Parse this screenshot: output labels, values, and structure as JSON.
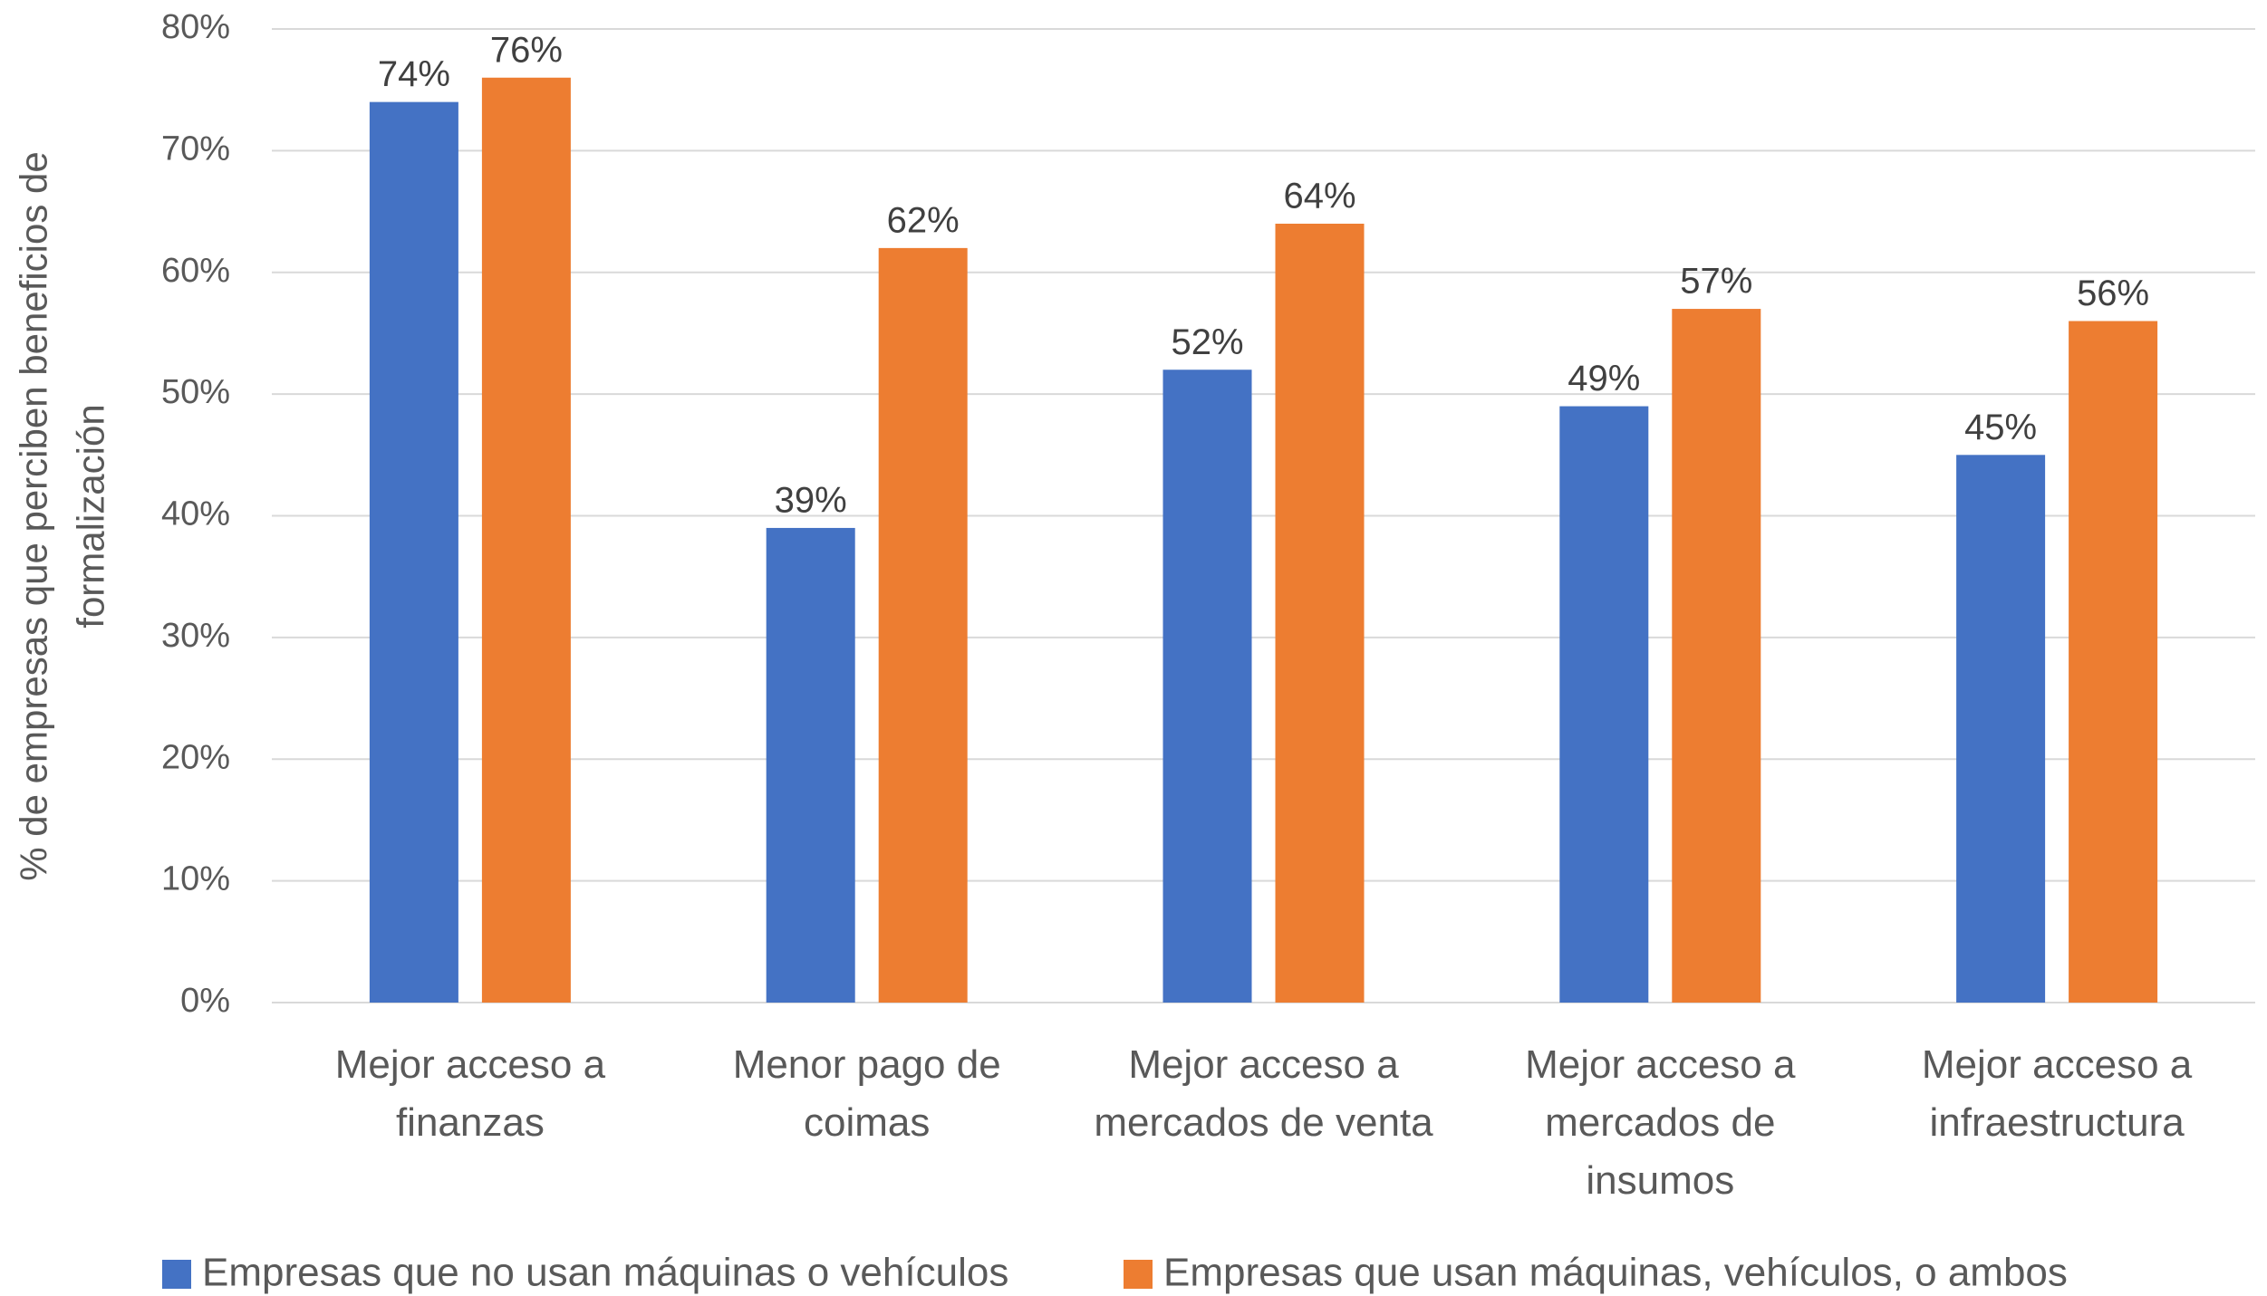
{
  "chart_data": {
    "type": "bar",
    "y_label": "% de empresas que perciben beneficios de\nformalización",
    "categories": [
      "Mejor acceso a\nfinanzas",
      "Menor pago de\ncoimas",
      "Mejor acceso a\nmercados de venta",
      "Mejor acceso a\nmercados de\ninsumos",
      "Mejor acceso a\ninfraestructura"
    ],
    "series": [
      {
        "name": "Empresas que no usan máquinas o vehículos",
        "color": "#4472c4",
        "values": [
          74,
          39,
          52,
          49,
          45
        ],
        "value_labels": [
          "74%",
          "39%",
          "52%",
          "49%",
          "45%"
        ]
      },
      {
        "name": "Empresas que usan máquinas, vehículos, o ambos",
        "color": "#ed7d31",
        "values": [
          76,
          62,
          64,
          57,
          56
        ],
        "value_labels": [
          "76%",
          "62%",
          "64%",
          "57%",
          "56%"
        ]
      }
    ],
    "ylim": [
      0,
      80
    ],
    "yticks": [
      {
        "value": 0,
        "label": "0%"
      },
      {
        "value": 10,
        "label": "10%"
      },
      {
        "value": 20,
        "label": "20%"
      },
      {
        "value": 30,
        "label": "30%"
      },
      {
        "value": 40,
        "label": "40%"
      },
      {
        "value": 50,
        "label": "50%"
      },
      {
        "value": 60,
        "label": "60%"
      },
      {
        "value": 70,
        "label": "70%"
      },
      {
        "value": 80,
        "label": "80%"
      }
    ],
    "grid": true,
    "legend": "bottom"
  }
}
